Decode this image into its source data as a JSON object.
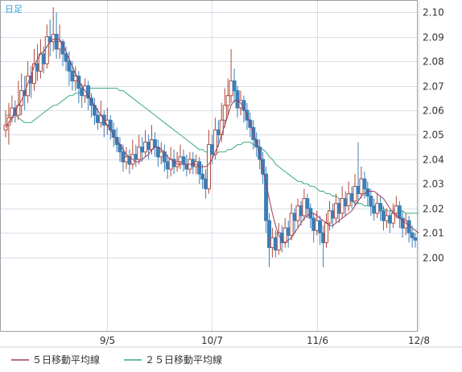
{
  "period_label": "日足",
  "legend": {
    "ma5_label": "５日移動平均線",
    "ma25_label": "２５日移動平均線"
  },
  "chart_data": {
    "type": "candlestick",
    "ylim": [
      1.97,
      2.105
    ],
    "y_ticks": [
      "2.10",
      "2.09",
      "2.08",
      "2.07",
      "2.06",
      "2.05",
      "2.04",
      "2.03",
      "2.02",
      "2.01",
      "2.00"
    ],
    "x_ticks": [
      {
        "label": "9/5",
        "index": 32
      },
      {
        "label": "10/7",
        "index": 65
      },
      {
        "label": "11/6",
        "index": 98
      },
      {
        "label": "12/8",
        "index": 130
      }
    ],
    "grid": true,
    "colors": {
      "up": "#b04a3a",
      "down": "#3a7fb8",
      "ma5": "#9a3c5a",
      "ma25": "#3aaa7e",
      "grid": "#d9dde6",
      "frame": "#9aa0a8"
    },
    "series": [
      {
        "name": "５日移動平均線",
        "values": [
          2.053,
          2.055,
          2.057,
          2.06,
          2.062,
          2.064,
          2.067,
          2.071,
          2.074,
          2.078,
          2.081,
          2.083,
          2.084,
          2.086,
          2.088,
          2.089,
          2.089,
          2.089,
          2.087,
          2.084,
          2.081,
          2.078,
          2.075,
          2.072,
          2.07,
          2.068,
          2.066,
          2.064,
          2.062,
          2.06,
          2.058,
          2.056,
          2.054,
          2.052,
          2.05,
          2.048,
          2.046,
          2.044,
          2.042,
          2.041,
          2.04,
          2.039,
          2.039,
          2.04,
          2.041,
          2.042,
          2.044,
          2.045,
          2.045,
          2.044,
          2.043,
          2.041,
          2.04,
          2.039,
          2.038,
          2.038,
          2.038,
          2.038,
          2.038,
          2.038,
          2.038,
          2.037,
          2.037,
          2.037,
          2.038,
          2.04,
          2.043,
          2.046,
          2.05,
          2.054,
          2.058,
          2.062,
          2.064,
          2.064,
          2.063,
          2.061,
          2.058,
          2.055,
          2.051,
          2.047,
          2.042,
          2.036,
          2.03,
          2.024,
          2.018,
          2.013,
          2.009,
          2.007,
          2.006,
          2.007,
          2.008,
          2.01,
          2.012,
          2.014,
          2.016,
          2.017,
          2.018,
          2.018,
          2.017,
          2.016,
          2.015,
          2.014,
          2.013,
          2.013,
          2.014,
          2.015,
          2.016,
          2.017,
          2.018,
          2.019,
          2.021,
          2.023,
          2.025,
          2.026,
          2.027,
          2.027,
          2.027,
          2.026,
          2.025,
          2.024,
          2.022,
          2.02,
          2.018,
          2.017,
          2.016,
          2.015,
          2.014,
          2.013,
          2.012,
          2.011,
          2.01
        ]
      },
      {
        "name": "２５日移動平均線",
        "values": [
          2.058,
          2.058,
          2.058,
          2.058,
          2.057,
          2.056,
          2.055,
          2.055,
          2.055,
          2.056,
          2.057,
          2.058,
          2.059,
          2.06,
          2.061,
          2.062,
          2.062,
          2.063,
          2.064,
          2.065,
          2.066,
          2.066,
          2.067,
          2.067,
          2.068,
          2.068,
          2.069,
          2.069,
          2.069,
          2.069,
          2.069,
          2.069,
          2.069,
          2.069,
          2.069,
          2.069,
          2.068,
          2.068,
          2.067,
          2.066,
          2.065,
          2.064,
          2.063,
          2.062,
          2.061,
          2.06,
          2.059,
          2.058,
          2.057,
          2.056,
          2.055,
          2.054,
          2.053,
          2.052,
          2.051,
          2.05,
          2.049,
          2.048,
          2.047,
          2.046,
          2.045,
          2.044,
          2.044,
          2.043,
          2.043,
          2.042,
          2.042,
          2.043,
          2.043,
          2.043,
          2.044,
          2.044,
          2.045,
          2.046,
          2.046,
          2.047,
          2.047,
          2.047,
          2.046,
          2.046,
          2.045,
          2.044,
          2.043,
          2.041,
          2.04,
          2.038,
          2.037,
          2.036,
          2.035,
          2.034,
          2.033,
          2.032,
          2.031,
          2.031,
          2.03,
          2.03,
          2.029,
          2.029,
          2.028,
          2.027,
          2.027,
          2.026,
          2.026,
          2.025,
          2.025,
          2.024,
          2.024,
          2.023,
          2.023,
          2.023,
          2.022,
          2.022,
          2.022,
          2.021,
          2.021,
          2.021,
          2.02,
          2.02,
          2.02,
          2.02,
          2.019,
          2.019,
          2.019,
          2.019,
          2.019,
          2.019,
          2.018,
          2.018,
          2.018,
          2.018,
          2.018
        ]
      }
    ],
    "candles": [
      [
        2.052,
        2.054,
        2.06,
        2.049
      ],
      [
        2.054,
        2.057,
        2.063,
        2.046
      ],
      [
        2.057,
        2.061,
        2.066,
        2.055
      ],
      [
        2.061,
        2.058,
        2.064,
        2.055
      ],
      [
        2.058,
        2.062,
        2.072,
        2.056
      ],
      [
        2.062,
        2.068,
        2.075,
        2.058
      ],
      [
        2.068,
        2.066,
        2.074,
        2.06
      ],
      [
        2.066,
        2.074,
        2.08,
        2.063
      ],
      [
        2.074,
        2.071,
        2.078,
        2.065
      ],
      [
        2.071,
        2.079,
        2.085,
        2.068
      ],
      [
        2.079,
        2.076,
        2.087,
        2.072
      ],
      [
        2.076,
        2.083,
        2.089,
        2.073
      ],
      [
        2.083,
        2.079,
        2.086,
        2.075
      ],
      [
        2.079,
        2.09,
        2.095,
        2.077
      ],
      [
        2.09,
        2.088,
        2.097,
        2.082
      ],
      [
        2.088,
        2.091,
        2.102,
        2.084
      ],
      [
        2.091,
        2.085,
        2.1,
        2.081
      ],
      [
        2.085,
        2.088,
        2.095,
        2.081
      ],
      [
        2.088,
        2.083,
        2.089,
        2.078
      ],
      [
        2.083,
        2.08,
        2.086,
        2.076
      ],
      [
        2.08,
        2.076,
        2.084,
        2.07
      ],
      [
        2.076,
        2.072,
        2.08,
        2.068
      ],
      [
        2.072,
        2.074,
        2.078,
        2.068
      ],
      [
        2.074,
        2.069,
        2.076,
        2.063
      ],
      [
        2.069,
        2.066,
        2.071,
        2.061
      ],
      [
        2.066,
        2.07,
        2.073,
        2.063
      ],
      [
        2.07,
        2.065,
        2.072,
        2.06
      ],
      [
        2.065,
        2.062,
        2.067,
        2.057
      ],
      [
        2.062,
        2.058,
        2.065,
        2.054
      ],
      [
        2.058,
        2.055,
        2.061,
        2.052
      ],
      [
        2.055,
        2.058,
        2.064,
        2.053
      ],
      [
        2.058,
        2.054,
        2.06,
        2.049
      ],
      [
        2.054,
        2.056,
        2.061,
        2.05
      ],
      [
        2.056,
        2.052,
        2.058,
        2.048
      ],
      [
        2.052,
        2.049,
        2.055,
        2.045
      ],
      [
        2.049,
        2.046,
        2.053,
        2.043
      ],
      [
        2.046,
        2.043,
        2.049,
        2.039
      ],
      [
        2.043,
        2.039,
        2.046,
        2.035
      ],
      [
        2.039,
        2.041,
        2.045,
        2.036
      ],
      [
        2.041,
        2.038,
        2.044,
        2.034
      ],
      [
        2.038,
        2.042,
        2.048,
        2.036
      ],
      [
        2.042,
        2.04,
        2.046,
        2.037
      ],
      [
        2.04,
        2.045,
        2.05,
        2.038
      ],
      [
        2.045,
        2.043,
        2.049,
        2.039
      ],
      [
        2.043,
        2.047,
        2.052,
        2.041
      ],
      [
        2.047,
        2.044,
        2.05,
        2.04
      ],
      [
        2.044,
        2.048,
        2.054,
        2.042
      ],
      [
        2.048,
        2.045,
        2.051,
        2.041
      ],
      [
        2.045,
        2.041,
        2.048,
        2.037
      ],
      [
        2.041,
        2.043,
        2.047,
        2.038
      ],
      [
        2.043,
        2.039,
        2.046,
        2.035
      ],
      [
        2.039,
        2.036,
        2.042,
        2.032
      ],
      [
        2.036,
        2.04,
        2.045,
        2.033
      ],
      [
        2.04,
        2.037,
        2.044,
        2.034
      ],
      [
        2.037,
        2.039,
        2.043,
        2.035
      ],
      [
        2.039,
        2.041,
        2.046,
        2.036
      ],
      [
        2.041,
        2.038,
        2.044,
        2.035
      ],
      [
        2.038,
        2.036,
        2.042,
        2.033
      ],
      [
        2.036,
        2.04,
        2.043,
        2.034
      ],
      [
        2.04,
        2.037,
        2.043,
        2.034
      ],
      [
        2.037,
        2.039,
        2.042,
        2.034
      ],
      [
        2.039,
        2.034,
        2.041,
        2.03
      ],
      [
        2.034,
        2.032,
        2.038,
        2.028
      ],
      [
        2.032,
        2.028,
        2.036,
        2.024
      ],
      [
        2.028,
        2.046,
        2.052,
        2.026
      ],
      [
        2.046,
        2.042,
        2.05,
        2.038
      ],
      [
        2.042,
        2.052,
        2.057,
        2.04
      ],
      [
        2.052,
        2.05,
        2.056,
        2.045
      ],
      [
        2.05,
        2.056,
        2.063,
        2.047
      ],
      [
        2.056,
        2.062,
        2.069,
        2.053
      ],
      [
        2.062,
        2.066,
        2.073,
        2.058
      ],
      [
        2.066,
        2.072,
        2.085,
        2.063
      ],
      [
        2.072,
        2.068,
        2.077,
        2.063
      ],
      [
        2.068,
        2.061,
        2.07,
        2.057
      ],
      [
        2.061,
        2.064,
        2.068,
        2.058
      ],
      [
        2.064,
        2.06,
        2.066,
        2.055
      ],
      [
        2.06,
        2.056,
        2.063,
        2.052
      ],
      [
        2.056,
        2.053,
        2.059,
        2.049
      ],
      [
        2.053,
        2.048,
        2.056,
        2.044
      ],
      [
        2.048,
        2.045,
        2.051,
        2.041
      ],
      [
        2.045,
        2.04,
        2.048,
        2.036
      ],
      [
        2.04,
        2.034,
        2.043,
        2.03
      ],
      [
        2.034,
        2.015,
        2.037,
        2.01
      ],
      [
        2.015,
        2.004,
        2.018,
        1.996
      ],
      [
        2.004,
        2.008,
        2.012,
        2.0
      ],
      [
        2.008,
        2.003,
        2.011,
        2.0
      ],
      [
        2.003,
        2.01,
        2.014,
        2.001
      ],
      [
        2.01,
        2.006,
        2.013,
        2.002
      ],
      [
        2.006,
        2.012,
        2.016,
        2.004
      ],
      [
        2.012,
        2.009,
        2.015,
        2.004
      ],
      [
        2.009,
        2.018,
        2.022,
        2.007
      ],
      [
        2.018,
        2.015,
        2.02,
        2.01
      ],
      [
        2.015,
        2.021,
        2.024,
        2.012
      ],
      [
        2.021,
        2.017,
        2.023,
        2.013
      ],
      [
        2.017,
        2.024,
        2.028,
        2.015
      ],
      [
        2.024,
        2.02,
        2.026,
        2.016
      ],
      [
        2.02,
        2.016,
        2.022,
        2.012
      ],
      [
        2.016,
        2.011,
        2.018,
        2.006
      ],
      [
        2.011,
        2.015,
        2.019,
        2.009
      ],
      [
        2.015,
        2.01,
        2.017,
        2.005
      ],
      [
        2.01,
        2.006,
        2.013,
        1.996
      ],
      [
        2.006,
        2.014,
        2.018,
        2.004
      ],
      [
        2.014,
        2.019,
        2.023,
        2.011
      ],
      [
        2.019,
        2.016,
        2.022,
        2.012
      ],
      [
        2.016,
        2.022,
        2.026,
        2.014
      ],
      [
        2.022,
        2.018,
        2.024,
        2.014
      ],
      [
        2.018,
        2.024,
        2.029,
        2.016
      ],
      [
        2.024,
        2.021,
        2.027,
        2.017
      ],
      [
        2.021,
        2.026,
        2.031,
        2.019
      ],
      [
        2.026,
        2.023,
        2.029,
        2.02
      ],
      [
        2.023,
        2.029,
        2.034,
        2.021
      ],
      [
        2.029,
        2.026,
        2.047,
        2.022
      ],
      [
        2.026,
        2.032,
        2.037,
        2.024
      ],
      [
        2.032,
        2.028,
        2.035,
        2.024
      ],
      [
        2.028,
        2.025,
        2.031,
        2.021
      ],
      [
        2.025,
        2.021,
        2.028,
        2.017
      ],
      [
        2.021,
        2.018,
        2.024,
        2.015
      ],
      [
        2.018,
        2.022,
        2.026,
        2.016
      ],
      [
        2.022,
        2.019,
        2.025,
        2.015
      ],
      [
        2.019,
        2.015,
        2.021,
        2.011
      ],
      [
        2.015,
        2.017,
        2.02,
        2.012
      ],
      [
        2.017,
        2.014,
        2.019,
        2.01
      ],
      [
        2.014,
        2.018,
        2.022,
        2.012
      ],
      [
        2.018,
        2.021,
        2.025,
        2.016
      ],
      [
        2.021,
        2.016,
        2.023,
        2.012
      ],
      [
        2.016,
        2.012,
        2.019,
        2.008
      ],
      [
        2.012,
        2.015,
        2.018,
        2.009
      ],
      [
        2.015,
        2.01,
        2.017,
        2.006
      ],
      [
        2.01,
        2.008,
        2.013,
        2.004
      ],
      [
        2.008,
        2.007,
        2.01,
        2.004
      ]
    ]
  }
}
